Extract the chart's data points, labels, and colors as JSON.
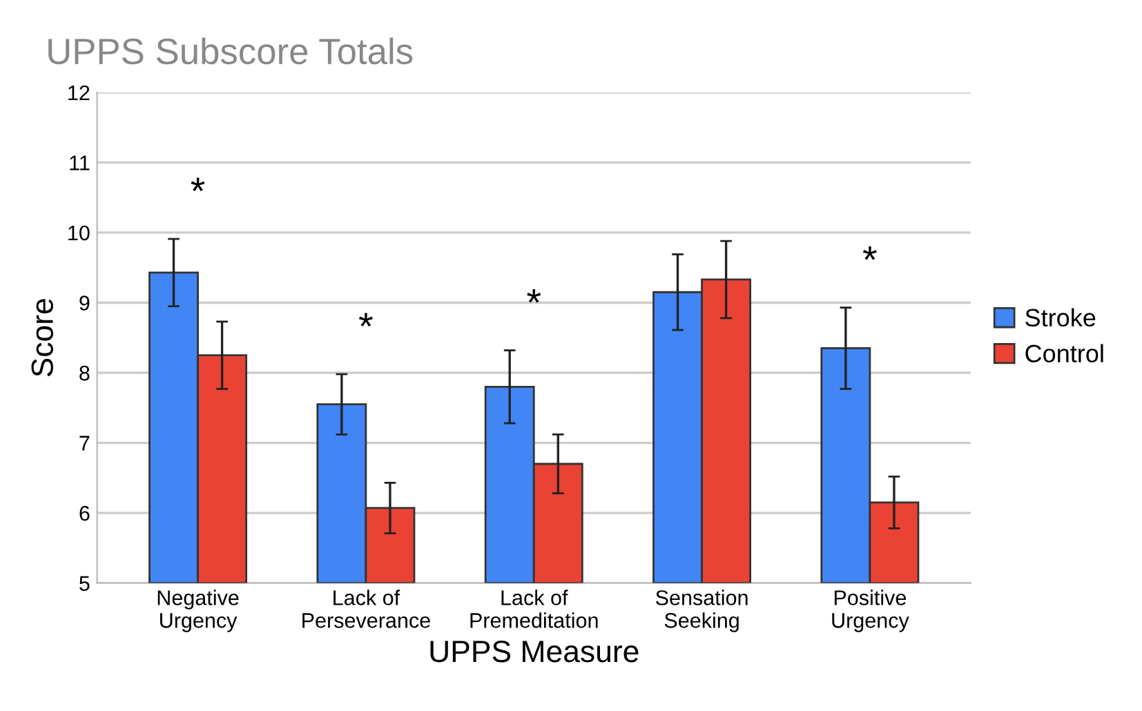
{
  "chart_data": {
    "type": "bar",
    "title": "UPPS Subscore Totals",
    "xlabel": "UPPS Measure",
    "ylabel": "Score",
    "categories": [
      "Negative\nUrgency",
      "Lack of\nPerseverance",
      "Lack of\nPremeditation",
      "Sensation\nSeeking",
      "Positive\nUrgency"
    ],
    "series": [
      {
        "name": "Stroke",
        "color": "#4285f4",
        "values": [
          9.43,
          7.55,
          7.8,
          9.15,
          8.35
        ],
        "errors": [
          0.48,
          0.43,
          0.52,
          0.54,
          0.58
        ]
      },
      {
        "name": "Control",
        "color": "#ea4335",
        "values": [
          8.25,
          6.07,
          6.7,
          9.33,
          6.15
        ],
        "errors": [
          0.48,
          0.36,
          0.42,
          0.55,
          0.37
        ]
      }
    ],
    "ylim": [
      5,
      12
    ],
    "yticks": [
      5,
      6,
      7,
      8,
      9,
      10,
      11,
      12
    ],
    "grid": "y",
    "legend": "right",
    "annotations": [
      "*",
      "*",
      "*",
      "*"
    ]
  }
}
